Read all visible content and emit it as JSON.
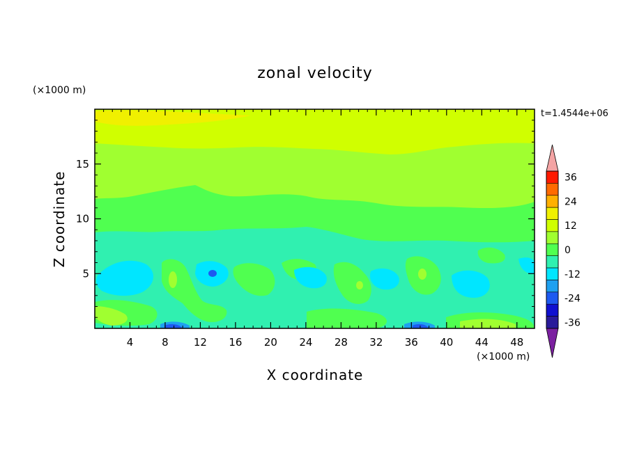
{
  "chart_data": {
    "type": "heatmap",
    "title": "zonal velocity",
    "xlabel": "X coordinate",
    "ylabel": "Z coordinate",
    "x_units": "(×1000 m)",
    "y_units": "(×1000 m)",
    "time_label": "t=1.4544e+06",
    "xlim": [
      0,
      50
    ],
    "ylim": [
      0,
      20
    ],
    "x_ticks": [
      4,
      8,
      12,
      16,
      20,
      24,
      28,
      32,
      36,
      40,
      44,
      48
    ],
    "y_ticks": [
      5,
      10,
      15
    ],
    "colorbar": {
      "levels": [
        -42,
        -36,
        -30,
        -24,
        -18,
        -12,
        -6,
        0,
        6,
        12,
        18,
        24,
        30,
        36,
        42
      ],
      "colors": [
        "#7b20a0",
        "#2a1a9a",
        "#1010d0",
        "#1e5af0",
        "#1ea0f0",
        "#00e6ff",
        "#30f0b0",
        "#50ff50",
        "#a0ff30",
        "#d0ff00",
        "#f0f000",
        "#ffb000",
        "#ff6a00",
        "#ff1a00",
        "#f4a4a4"
      ],
      "tick_labels": [
        "36",
        "24",
        "12",
        "0",
        "-12",
        "-24",
        "-36"
      ],
      "tick_values": [
        36,
        24,
        12,
        0,
        -12,
        -24,
        -36
      ],
      "extend": "both"
    },
    "field_description": "zonal velocity contours: ~10 near top, ~5 mid-upper, ~0 at 10-13 km, ~-6 below 8 km, strongest negative (~-20) near surface at x≈8, 36 km and cell at (13,5)"
  }
}
